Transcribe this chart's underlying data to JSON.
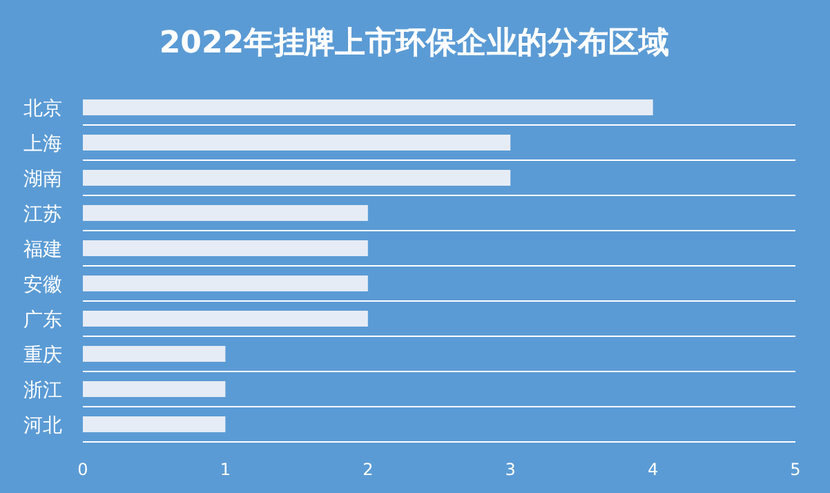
{
  "chart_data": {
    "type": "bar",
    "orientation": "horizontal",
    "title": "2022年挂牌上市环保企业的分布区域",
    "categories": [
      "北京",
      "上海",
      "湖南",
      "江苏",
      "福建",
      "安徽",
      "广东",
      "重庆",
      "浙江",
      "河北"
    ],
    "values": [
      4,
      3,
      3,
      2,
      2,
      2,
      2,
      1,
      1,
      1
    ],
    "color": "#e6ecf5",
    "xlim": [
      0,
      5
    ],
    "xticks": [
      0,
      1,
      2,
      3,
      4,
      5
    ],
    "grid": "y"
  }
}
